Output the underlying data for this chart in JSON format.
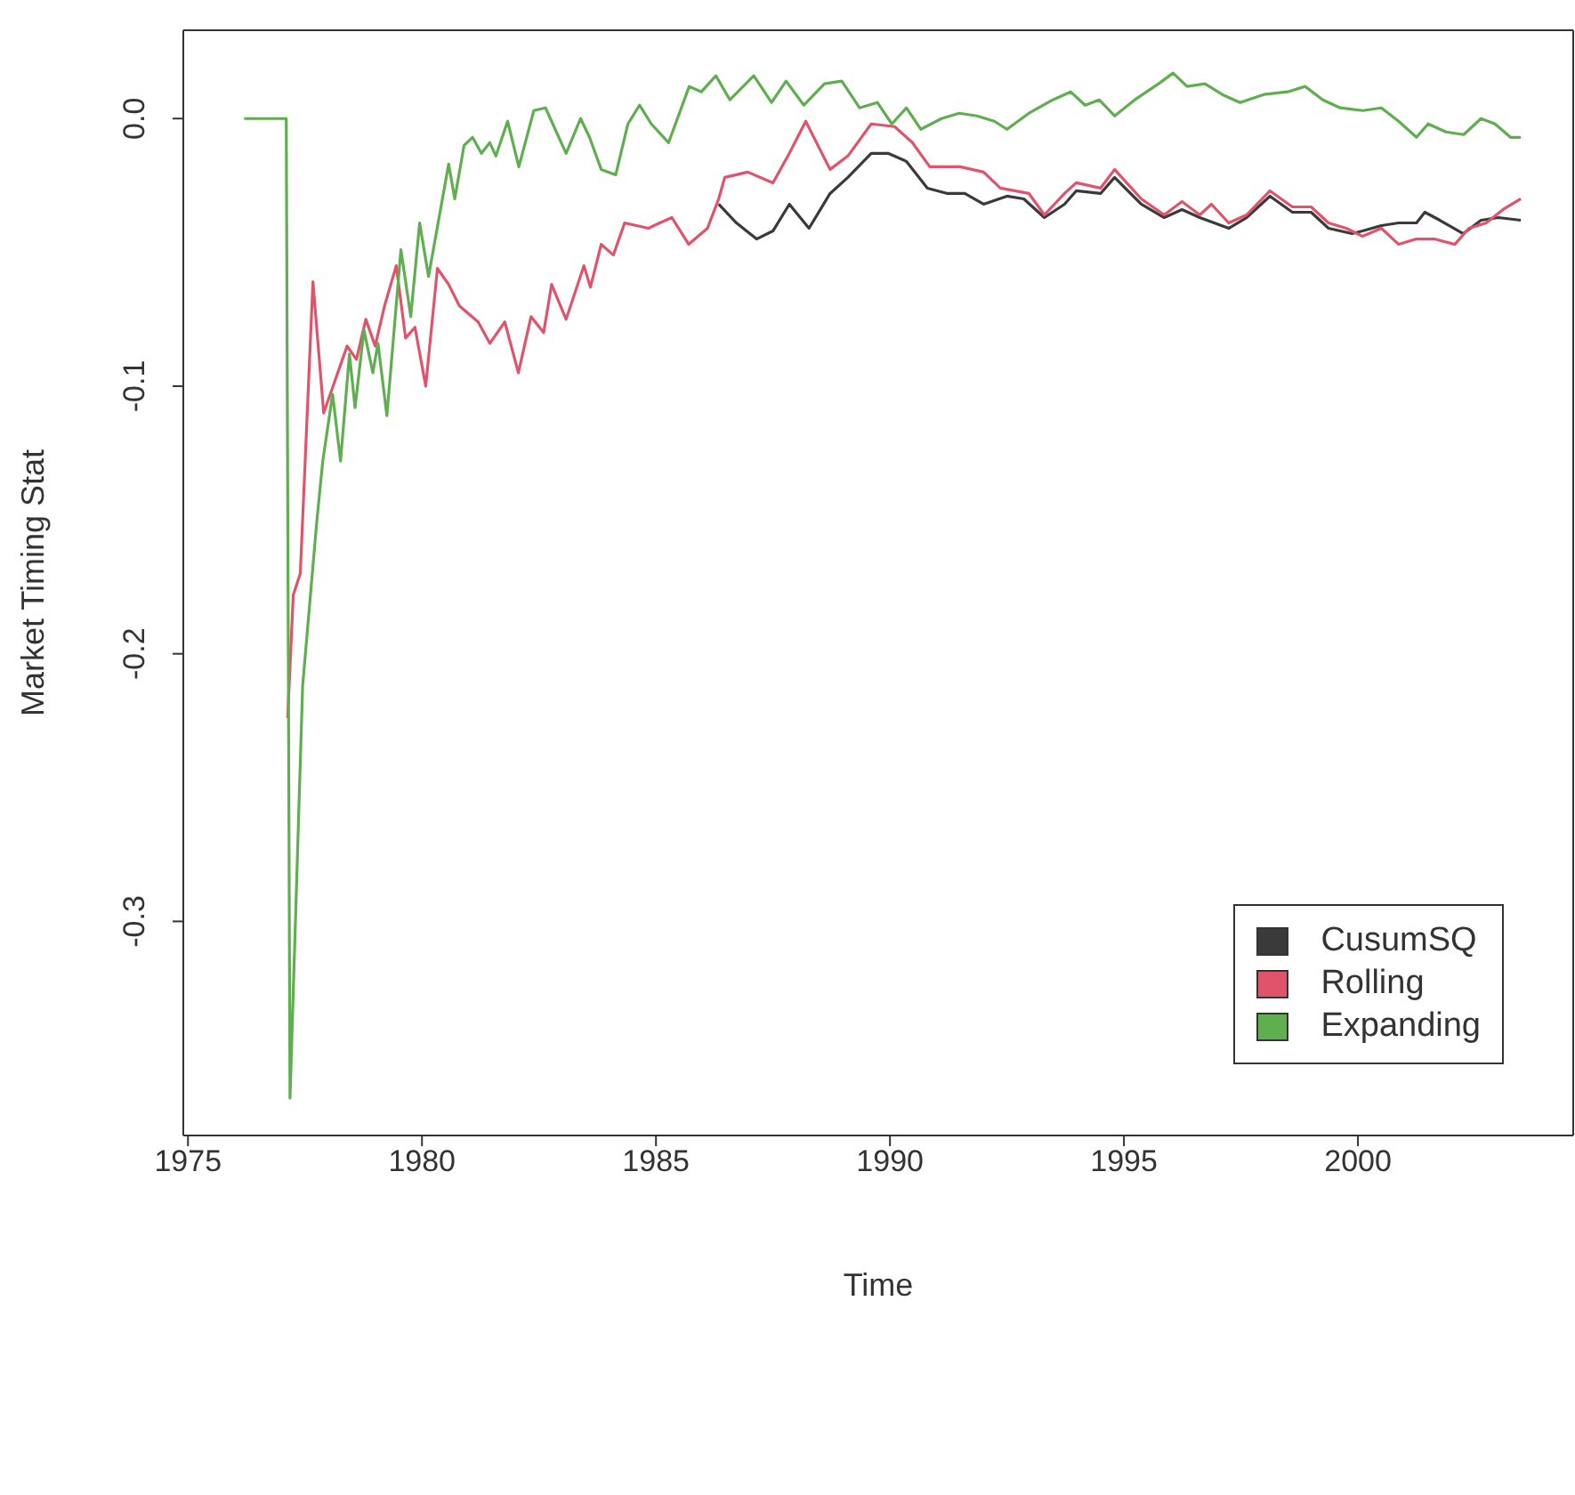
{
  "chart_data": {
    "type": "line",
    "xlabel": "Time",
    "ylabel": "Market Timing Stat",
    "xlim": [
      1974.9,
      2004.6
    ],
    "ylim": [
      -0.38,
      0.033
    ],
    "xticks": [
      1975,
      1980,
      1985,
      1990,
      1995,
      2000
    ],
    "yticks": [
      -0.3,
      -0.2,
      -0.1,
      {
        "value": 0,
        "label": "0.0"
      }
    ],
    "legend": "bottom right",
    "marker": "none",
    "line_style": "solid",
    "series": [
      {
        "name": "CusumSQ",
        "color": "#3a3a3a",
        "x": [
          1986.34,
          1986.72,
          1987.15,
          1987.5,
          1987.85,
          1988.27,
          1988.72,
          1989.1,
          1989.6,
          1989.96,
          1990.35,
          1990.8,
          1991.23,
          1991.6,
          1992.0,
          1992.5,
          1992.86,
          1993.3,
          1993.73,
          1993.98,
          1994.5,
          1994.8,
          1995.37,
          1995.86,
          1996.24,
          1996.62,
          1997.24,
          1997.62,
          1998.12,
          1998.6,
          1999.0,
          1999.37,
          1999.87,
          2000.1,
          2000.5,
          2000.87,
          2001.25,
          2001.43,
          2001.75,
          2002.25,
          2002.63,
          2003.0,
          2003.48
        ],
        "values": [
          -0.032,
          -0.039,
          -0.045,
          -0.042,
          -0.032,
          -0.041,
          -0.028,
          -0.022,
          -0.013,
          -0.013,
          -0.016,
          -0.026,
          -0.028,
          -0.028,
          -0.032,
          -0.029,
          -0.03,
          -0.037,
          -0.032,
          -0.027,
          -0.028,
          -0.022,
          -0.032,
          -0.037,
          -0.034,
          -0.037,
          -0.041,
          -0.037,
          -0.029,
          -0.035,
          -0.035,
          -0.041,
          -0.043,
          -0.042,
          -0.04,
          -0.039,
          -0.039,
          -0.035,
          -0.038,
          -0.043,
          -0.038,
          -0.037,
          -0.038
        ]
      },
      {
        "name": "Rolling",
        "color": "#df536b",
        "x": [
          1977.13,
          1977.25,
          1977.4,
          1977.67,
          1977.9,
          1978.1,
          1978.4,
          1978.6,
          1978.8,
          1979.0,
          1979.2,
          1979.45,
          1979.65,
          1979.85,
          1980.08,
          1980.33,
          1980.57,
          1980.8,
          1981.2,
          1981.45,
          1981.77,
          1982.06,
          1982.33,
          1982.6,
          1982.77,
          1983.08,
          1983.46,
          1983.6,
          1983.83,
          1984.09,
          1984.33,
          1984.84,
          1985.08,
          1985.34,
          1985.7,
          1986.1,
          1986.34,
          1986.47,
          1986.96,
          1987.5,
          1987.85,
          1988.2,
          1988.72,
          1989.1,
          1989.6,
          1990.1,
          1990.48,
          1990.85,
          1991.5,
          1992.0,
          1992.36,
          1992.97,
          1993.3,
          1993.73,
          1993.98,
          1994.5,
          1994.8,
          1995.37,
          1995.86,
          1996.24,
          1996.62,
          1996.87,
          1997.24,
          1997.62,
          1998.12,
          1998.6,
          1999.0,
          1999.37,
          1999.75,
          2000.1,
          2000.5,
          2000.87,
          2001.25,
          2001.63,
          2002.07,
          2002.37,
          2002.74,
          2003.1,
          2003.48
        ],
        "values": [
          -0.224,
          -0.178,
          -0.17,
          -0.061,
          -0.11,
          -0.1,
          -0.085,
          -0.09,
          -0.075,
          -0.085,
          -0.07,
          -0.055,
          -0.082,
          -0.078,
          -0.1,
          -0.056,
          -0.062,
          -0.07,
          -0.076,
          -0.084,
          -0.076,
          -0.095,
          -0.074,
          -0.08,
          -0.062,
          -0.075,
          -0.055,
          -0.063,
          -0.047,
          -0.051,
          -0.039,
          -0.041,
          -0.039,
          -0.037,
          -0.047,
          -0.041,
          -0.03,
          -0.022,
          -0.02,
          -0.024,
          -0.013,
          -0.001,
          -0.019,
          -0.014,
          -0.002,
          -0.003,
          -0.009,
          -0.018,
          -0.018,
          -0.02,
          -0.026,
          -0.028,
          -0.036,
          -0.028,
          -0.024,
          -0.026,
          -0.019,
          -0.03,
          -0.036,
          -0.031,
          -0.036,
          -0.032,
          -0.039,
          -0.036,
          -0.027,
          -0.033,
          -0.033,
          -0.039,
          -0.041,
          -0.044,
          -0.041,
          -0.047,
          -0.045,
          -0.045,
          -0.047,
          -0.041,
          -0.039,
          -0.034,
          -0.03
        ]
      },
      {
        "name": "Expanding",
        "color": "#5fae4f",
        "x": [
          1976.2,
          1977.1,
          1977.18,
          1977.45,
          1977.75,
          1977.88,
          1978.09,
          1978.26,
          1978.45,
          1978.57,
          1978.76,
          1978.95,
          1979.06,
          1979.25,
          1979.55,
          1979.76,
          1979.95,
          1980.14,
          1980.57,
          1980.7,
          1980.9,
          1981.08,
          1981.27,
          1981.45,
          1981.58,
          1981.83,
          1982.07,
          1982.39,
          1982.64,
          1982.82,
          1983.08,
          1983.39,
          1983.58,
          1983.83,
          1984.14,
          1984.4,
          1984.65,
          1984.9,
          1985.27,
          1985.71,
          1985.97,
          1986.28,
          1986.58,
          1987.09,
          1987.47,
          1987.78,
          1988.16,
          1988.6,
          1988.97,
          1989.35,
          1989.73,
          1990.04,
          1990.35,
          1990.66,
          1991.1,
          1991.48,
          1991.86,
          1992.23,
          1992.5,
          1992.97,
          1993.48,
          1993.86,
          1994.17,
          1994.47,
          1994.8,
          1995.23,
          1995.74,
          1996.05,
          1996.35,
          1996.73,
          1997.1,
          1997.48,
          1997.99,
          1998.5,
          1998.87,
          1999.25,
          1999.62,
          2000.11,
          2000.5,
          2000.87,
          2001.25,
          2001.5,
          2001.88,
          2002.26,
          2002.63,
          2002.93,
          2003.26,
          2003.48
        ],
        "values": [
          0,
          0,
          -0.366,
          -0.212,
          -0.151,
          -0.128,
          -0.103,
          -0.128,
          -0.088,
          -0.108,
          -0.079,
          -0.095,
          -0.084,
          -0.111,
          -0.049,
          -0.074,
          -0.039,
          -0.059,
          -0.017,
          -0.03,
          -0.01,
          -0.007,
          -0.013,
          -0.009,
          -0.014,
          -0.001,
          -0.018,
          0.003,
          0.004,
          -0.003,
          -0.013,
          0,
          -0.007,
          -0.019,
          -0.021,
          -0.002,
          0.005,
          -0.002,
          -0.009,
          0.012,
          0.01,
          0.016,
          0.007,
          0.016,
          0.006,
          0.014,
          0.005,
          0.013,
          0.014,
          0.004,
          0.006,
          -0.002,
          0.004,
          -0.004,
          0,
          0.002,
          0.001,
          -0.001,
          -0.004,
          0.002,
          0.007,
          0.01,
          0.005,
          0.007,
          0.001,
          0.007,
          0.013,
          0.017,
          0.012,
          0.013,
          0.009,
          0.006,
          0.009,
          0.01,
          0.012,
          0.007,
          0.004,
          0.003,
          0.004,
          -0.001,
          -0.007,
          -0.002,
          -0.005,
          -0.006,
          0,
          -0.002,
          -0.007,
          -0.007
        ]
      }
    ]
  }
}
